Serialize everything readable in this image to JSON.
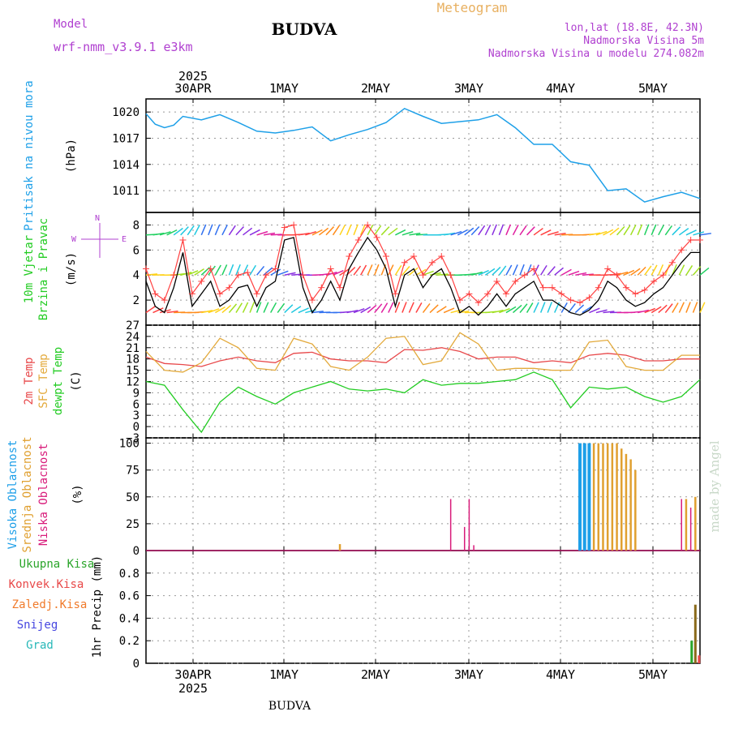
{
  "header": {
    "title": "BUDVA",
    "model_label": "Model",
    "model_value": "wrf-nmm_v3.9.1 e3km",
    "product": "Meteogram",
    "location": "lon,lat (18.8E, 42.3N)",
    "elevation": "Nadmorska Visina 5m",
    "model_elevation": "Nadmorska Visina u modelu 274.082m",
    "footer": "BUDVA",
    "credit": "made by Angel",
    "year": "2025"
  },
  "colors": {
    "pressure": "#1ea0e8",
    "temp2m": "#e8484a",
    "sfc": "#e3aa3c",
    "dew": "#22cc22",
    "high": "#1e9fe8",
    "mid": "#e0a030",
    "low": "#d81b7a",
    "total": "#2aa52a",
    "conv": "#e84848",
    "frozen": "#f07a2a",
    "snow": "#4646e0",
    "grad": "#28b8b8",
    "wind_label": "#22cc22",
    "dir_label": "#b040d0",
    "info": "#b040d0",
    "product_color": "#e8b060"
  },
  "time_axis": {
    "days": [
      "30APR",
      "1MAY",
      "2MAY",
      "3MAY",
      "4MAY",
      "5MAY"
    ]
  },
  "chart_data": [
    {
      "type": "line",
      "id": "pressure",
      "ylabel": "Pritisak na nivou mora",
      "unit": "(hPa)",
      "ylim": [
        1008.5,
        1021.5
      ],
      "yticks": [
        1011,
        1014,
        1017,
        1020
      ],
      "xlim": [
        0,
        120
      ],
      "series": [
        {
          "name": "Pritisak na nivou mora",
          "x": [
            0,
            2,
            4,
            6,
            8,
            12,
            16,
            20,
            24,
            28,
            32,
            36,
            40,
            44,
            48,
            52,
            56,
            60,
            64,
            68,
            72,
            76,
            80,
            84,
            88,
            92,
            96,
            100,
            104,
            108,
            112,
            116,
            120
          ],
          "values": [
            1019.8,
            1018.6,
            1018.2,
            1018.5,
            1019.5,
            1019.1,
            1019.7,
            1018.8,
            1017.8,
            1017.6,
            1017.9,
            1018.3,
            1016.7,
            1017.4,
            1018.0,
            1018.8,
            1020.4,
            1019.5,
            1018.7,
            1018.9,
            1019.1,
            1019.7,
            1018.2,
            1016.3,
            1016.3,
            1014.3,
            1013.9,
            1011.0,
            1011.2,
            1009.7,
            1010.3,
            1010.8,
            1010.1
          ]
        }
      ]
    },
    {
      "type": "line",
      "id": "wind",
      "ylabel": "10m Vjetar",
      "ylabel2": "Brzina i Pravac",
      "unit": "(m/s)",
      "ylim": [
        0,
        9
      ],
      "yticks": [
        2,
        4,
        6,
        8
      ],
      "xlim": [
        0,
        120
      ],
      "series": [
        {
          "name": "10m Vjetar Brzina",
          "x": [
            0,
            2,
            4,
            6,
            8,
            10,
            12,
            14,
            16,
            18,
            20,
            22,
            24,
            26,
            28,
            30,
            32,
            34,
            36,
            38,
            40,
            42,
            44,
            46,
            48,
            50,
            52,
            54,
            56,
            58,
            60,
            62,
            64,
            66,
            68,
            70,
            72,
            74,
            76,
            78,
            80,
            82,
            84,
            86,
            88,
            90,
            92,
            94,
            96,
            98,
            100,
            102,
            104,
            106,
            108,
            110,
            112,
            114,
            116,
            118,
            120
          ],
          "values": [
            3.5,
            1.5,
            1.0,
            3.0,
            5.8,
            1.5,
            2.5,
            3.5,
            1.5,
            2.0,
            3.0,
            3.2,
            1.5,
            3.0,
            3.5,
            6.8,
            7.0,
            3.0,
            1.0,
            2.0,
            3.5,
            2.0,
            4.5,
            5.8,
            7.0,
            6.0,
            4.5,
            1.5,
            4.0,
            4.5,
            3.0,
            4.0,
            4.5,
            3.0,
            1.0,
            1.5,
            0.8,
            1.5,
            2.5,
            1.5,
            2.5,
            3.0,
            3.5,
            2.0,
            2.0,
            1.5,
            1.0,
            0.8,
            1.2,
            2.0,
            3.5,
            3.0,
            2.0,
            1.5,
            1.8,
            2.5,
            3.0,
            4.0,
            5.0,
            5.8,
            5.8
          ]
        },
        {
          "name": "Udari",
          "x": [
            0,
            2,
            4,
            6,
            8,
            10,
            12,
            14,
            16,
            18,
            20,
            22,
            24,
            26,
            28,
            30,
            32,
            34,
            36,
            38,
            40,
            42,
            44,
            46,
            48,
            50,
            52,
            54,
            56,
            58,
            60,
            62,
            64,
            66,
            68,
            70,
            72,
            74,
            76,
            78,
            80,
            82,
            84,
            86,
            88,
            90,
            92,
            94,
            96,
            98,
            100,
            102,
            104,
            106,
            108,
            110,
            112,
            114,
            116,
            118,
            120
          ],
          "values": [
            4.5,
            2.5,
            2.0,
            4.0,
            6.8,
            2.5,
            3.5,
            4.5,
            2.5,
            3.0,
            4.0,
            4.2,
            2.5,
            4.0,
            4.5,
            7.8,
            8.0,
            4.0,
            2.0,
            3.0,
            4.5,
            3.0,
            5.5,
            6.8,
            8.0,
            7.0,
            5.5,
            2.5,
            5.0,
            5.5,
            4.0,
            5.0,
            5.5,
            4.0,
            2.0,
            2.5,
            1.8,
            2.5,
            3.5,
            2.5,
            3.5,
            4.0,
            4.5,
            3.0,
            3.0,
            2.5,
            2.0,
            1.8,
            2.2,
            3.0,
            4.5,
            4.0,
            3.0,
            2.5,
            2.8,
            3.5,
            4.0,
            5.0,
            6.0,
            6.8,
            6.8
          ]
        }
      ],
      "direction_levels": [
        1,
        4,
        7.2
      ],
      "legend": [
        "W",
        "N",
        "E"
      ]
    },
    {
      "type": "line",
      "id": "temperature",
      "ylabel": [
        "2m Temp",
        "SFC Temp",
        "dewpt Temp"
      ],
      "unit": "(C)",
      "ylim": [
        -3,
        27
      ],
      "yticks": [
        -3,
        0,
        3,
        6,
        9,
        12,
        15,
        18,
        21,
        24,
        27
      ],
      "xlim": [
        0,
        120
      ],
      "series": [
        {
          "name": "2m Temp",
          "x": [
            0,
            4,
            8,
            12,
            16,
            20,
            24,
            28,
            32,
            36,
            40,
            44,
            48,
            52,
            56,
            60,
            64,
            68,
            72,
            76,
            80,
            84,
            88,
            92,
            96,
            100,
            104,
            108,
            112,
            116,
            120
          ],
          "values": [
            18.5,
            16.8,
            16.5,
            16.0,
            17.5,
            18.5,
            17.5,
            17.0,
            19.5,
            19.8,
            18.0,
            17.5,
            17.5,
            17.0,
            20.5,
            20.3,
            21.0,
            20.0,
            18.0,
            18.5,
            18.5,
            17.0,
            17.5,
            17.0,
            19.0,
            19.5,
            19.0,
            17.5,
            17.5,
            18.0,
            18.0
          ]
        },
        {
          "name": "SFC Temp",
          "x": [
            0,
            4,
            8,
            12,
            16,
            20,
            24,
            28,
            32,
            36,
            40,
            44,
            48,
            52,
            56,
            60,
            64,
            68,
            72,
            76,
            80,
            84,
            88,
            92,
            96,
            100,
            104,
            108,
            112,
            116,
            120
          ],
          "values": [
            20.0,
            15.0,
            14.5,
            17.0,
            23.5,
            21.0,
            15.5,
            15.0,
            23.5,
            22.0,
            16.0,
            15.0,
            18.5,
            23.5,
            24.0,
            16.5,
            17.5,
            25.0,
            22.0,
            15.0,
            15.5,
            15.5,
            15.0,
            15.0,
            22.5,
            23.0,
            16.0,
            15.0,
            15.0,
            19.0,
            19.0
          ]
        },
        {
          "name": "dewpt Temp",
          "x": [
            0,
            4,
            8,
            12,
            16,
            20,
            24,
            28,
            32,
            36,
            40,
            44,
            48,
            52,
            56,
            60,
            64,
            68,
            72,
            76,
            80,
            84,
            88,
            92,
            96,
            100,
            104,
            108,
            112,
            116,
            120
          ],
          "values": [
            12.0,
            11.0,
            4.5,
            -1.5,
            6.5,
            10.5,
            8.0,
            6.0,
            9.0,
            10.5,
            12.0,
            10.0,
            9.5,
            10.0,
            9.0,
            12.5,
            11.0,
            11.5,
            11.5,
            12.0,
            12.5,
            14.5,
            12.5,
            5.0,
            10.5,
            10.0,
            10.5,
            8.0,
            6.5,
            8.0,
            12.5
          ]
        }
      ]
    },
    {
      "type": "bar",
      "id": "clouds",
      "ylabel": [
        "Visoka Oblacnost",
        "Srednja Oblacnost",
        "Niska Oblacnost"
      ],
      "unit": "(%)",
      "ylim": [
        0,
        105
      ],
      "yticks": [
        0,
        25,
        50,
        75,
        100
      ],
      "xlim": [
        0,
        120
      ],
      "series": [
        {
          "name": "Visoka Oblacnost",
          "x": [
            94,
            95,
            96
          ],
          "values": [
            100,
            100,
            100
          ]
        },
        {
          "name": "Srednja Oblacnost",
          "x": [
            42,
            97,
            98,
            99,
            100,
            101,
            102,
            103,
            104,
            105,
            106,
            117,
            119
          ],
          "values": [
            6,
            100,
            100,
            100,
            100,
            100,
            100,
            95,
            90,
            85,
            75,
            48,
            50
          ]
        },
        {
          "name": "Niska Oblacnost",
          "x": [
            66,
            69,
            70,
            71,
            116,
            118
          ],
          "values": [
            48,
            22,
            48,
            5,
            48,
            40
          ]
        }
      ]
    },
    {
      "type": "bar",
      "id": "precip",
      "ylabel": [
        "Ukupna Kisa",
        "Konvek.Kisa",
        "Zaledj.Kisa",
        "Snijeg",
        "Grad"
      ],
      "unit": "1hr Precip (mm)",
      "ylim": [
        0,
        1
      ],
      "yticks": [
        0,
        0.2,
        0.4,
        0.6,
        0.8
      ],
      "xlim": [
        0,
        120
      ],
      "series": [
        {
          "name": "Ukupna Kisa",
          "x": [
            118.2,
            119
          ],
          "values": [
            0.2,
            0.52
          ]
        },
        {
          "name": "Konvek.Kisa",
          "x": [
            119.8
          ],
          "values": [
            0.07
          ]
        }
      ]
    }
  ]
}
